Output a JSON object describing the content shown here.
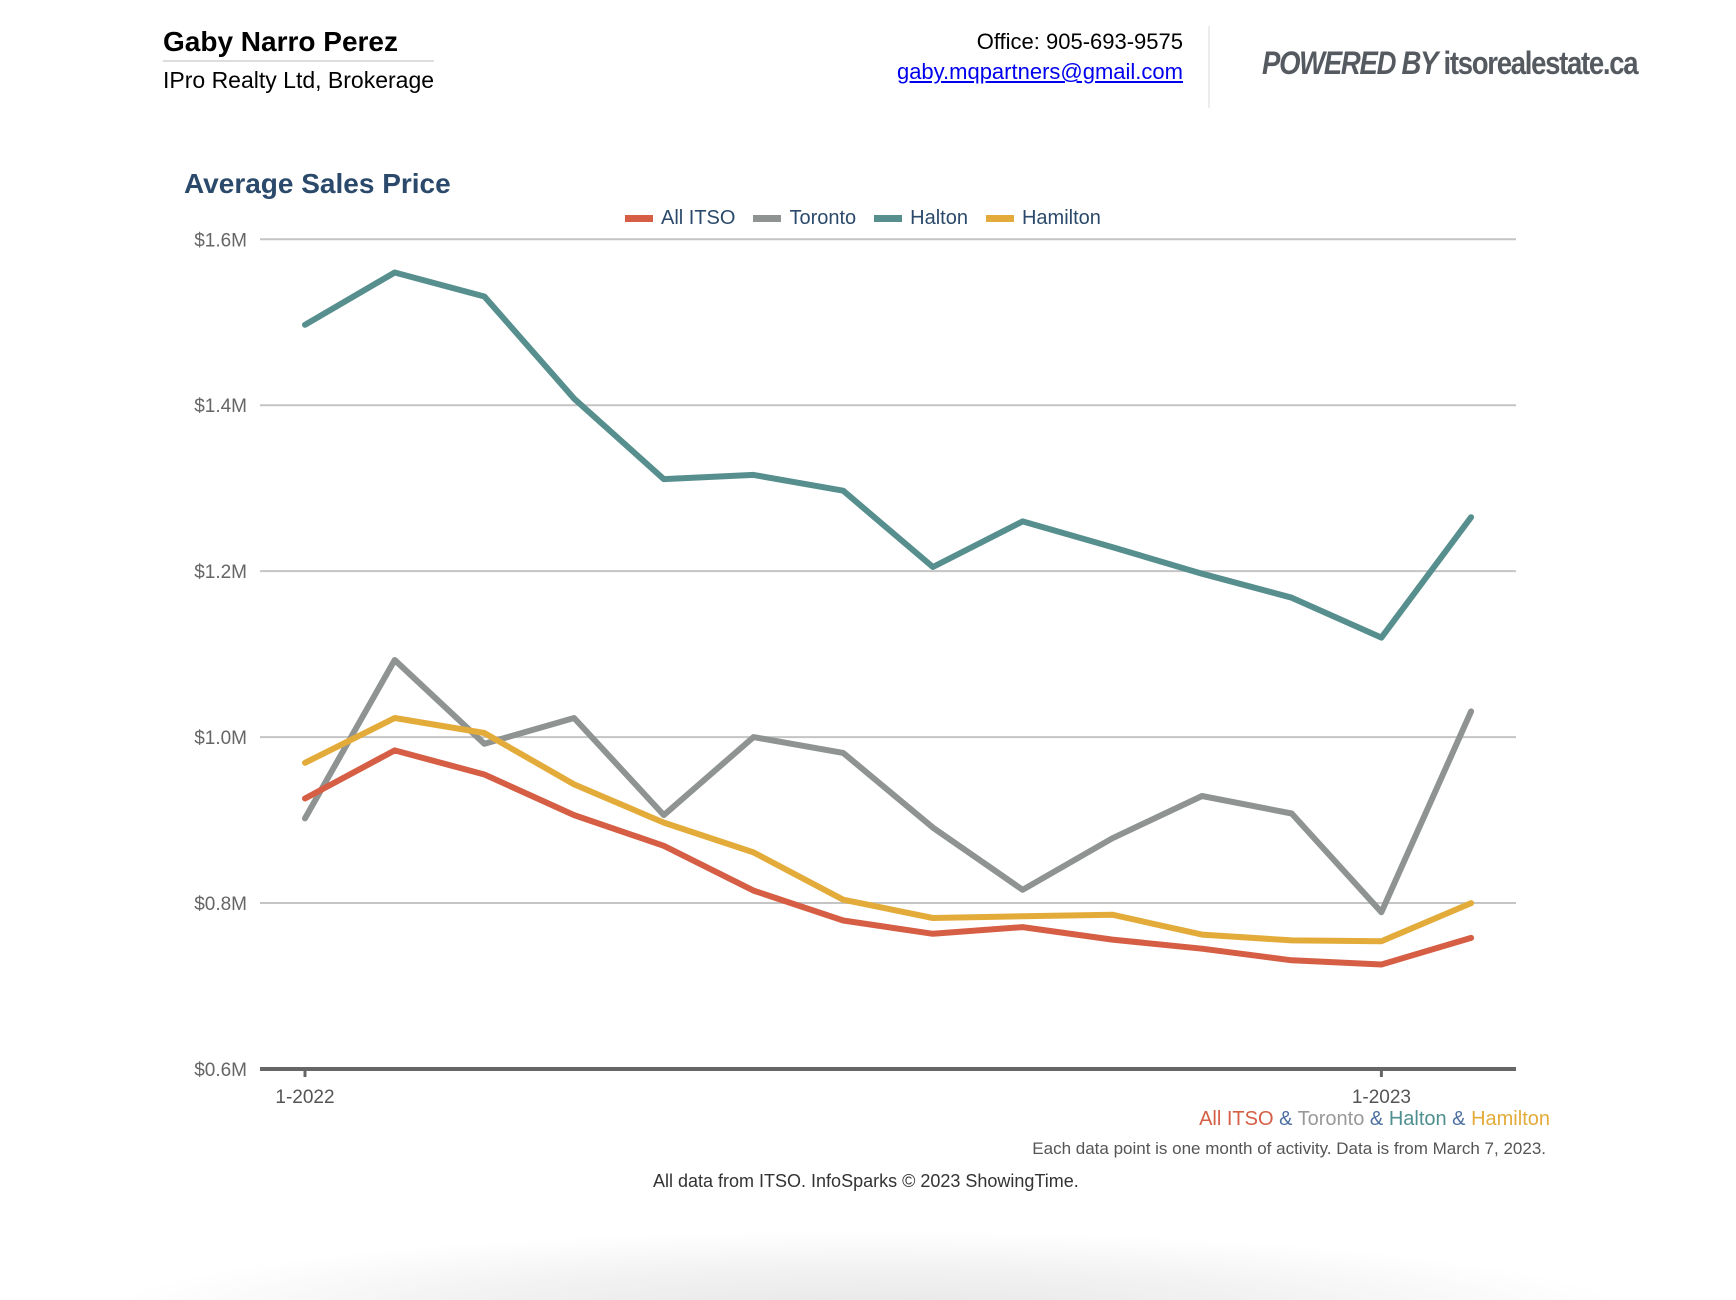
{
  "header": {
    "agent_name": "Gaby Narro Perez",
    "brokerage": "IPro Realty Ltd, Brokerage",
    "office_phone": "Office: 905-693-9575",
    "email": "gaby.mqpartners@gmail.com",
    "powered_by_prefix": "POWERED BY",
    "powered_by_site": "itsorealestate.ca"
  },
  "footer": {
    "series_caption": [
      {
        "text": "All ITSO",
        "color": "#d55e45"
      },
      {
        "text": " & ",
        "color": "#4a6fa0"
      },
      {
        "text": "Toronto",
        "color": "#999999"
      },
      {
        "text": " & ",
        "color": "#4a6fa0"
      },
      {
        "text": "Halton",
        "color": "#4f8f8f"
      },
      {
        "text": " & ",
        "color": "#4a6fa0"
      },
      {
        "text": "Hamilton",
        "color": "#e3ac3a"
      }
    ],
    "note": "Each data point is one month of activity. Data is from March 7, 2023.",
    "source": "All data from ITSO. InfoSparks © 2023 ShowingTime."
  },
  "chart_data": {
    "type": "line",
    "title": "Average Sales Price",
    "xlabel": "",
    "ylabel": "",
    "x": [
      "1-2022",
      "2-2022",
      "3-2022",
      "4-2022",
      "5-2022",
      "6-2022",
      "7-2022",
      "8-2022",
      "9-2022",
      "10-2022",
      "11-2022",
      "12-2022",
      "1-2023",
      "2-2023"
    ],
    "x_tick_labels": [
      {
        "index": 0,
        "label": "1-2022"
      },
      {
        "index": 12,
        "label": "1-2023"
      }
    ],
    "ylim": [
      0.6,
      1.6
    ],
    "y_ticks": [
      0.6,
      0.8,
      1.0,
      1.2,
      1.4,
      1.6
    ],
    "y_tick_labels": [
      "$0.6M",
      "$0.8M",
      "$1.0M",
      "$1.2M",
      "$1.4M",
      "$1.6M"
    ],
    "y_unit": "millions CAD",
    "grid": true,
    "legend_position": "top-center",
    "series": [
      {
        "name": "All ITSO",
        "color": "#d55e45",
        "values": [
          0.926,
          0.984,
          0.955,
          0.906,
          0.869,
          0.815,
          0.779,
          0.763,
          0.771,
          0.756,
          0.745,
          0.731,
          0.726,
          0.758
        ]
      },
      {
        "name": "Toronto",
        "color": "#8f9493",
        "values": [
          0.902,
          1.093,
          0.992,
          1.023,
          0.906,
          1.0,
          0.981,
          0.891,
          0.816,
          0.878,
          0.929,
          0.908,
          0.789,
          1.031
        ]
      },
      {
        "name": "Halton",
        "color": "#578f8e",
        "values": [
          1.497,
          1.56,
          1.531,
          1.408,
          1.311,
          1.316,
          1.297,
          1.205,
          1.26,
          1.229,
          1.197,
          1.168,
          1.12,
          1.265
        ]
      },
      {
        "name": "Hamilton",
        "color": "#e3ac3a",
        "values": [
          0.969,
          1.023,
          1.005,
          0.943,
          0.897,
          0.861,
          0.804,
          0.782,
          0.784,
          0.786,
          0.762,
          0.755,
          0.754,
          0.8
        ]
      }
    ]
  }
}
